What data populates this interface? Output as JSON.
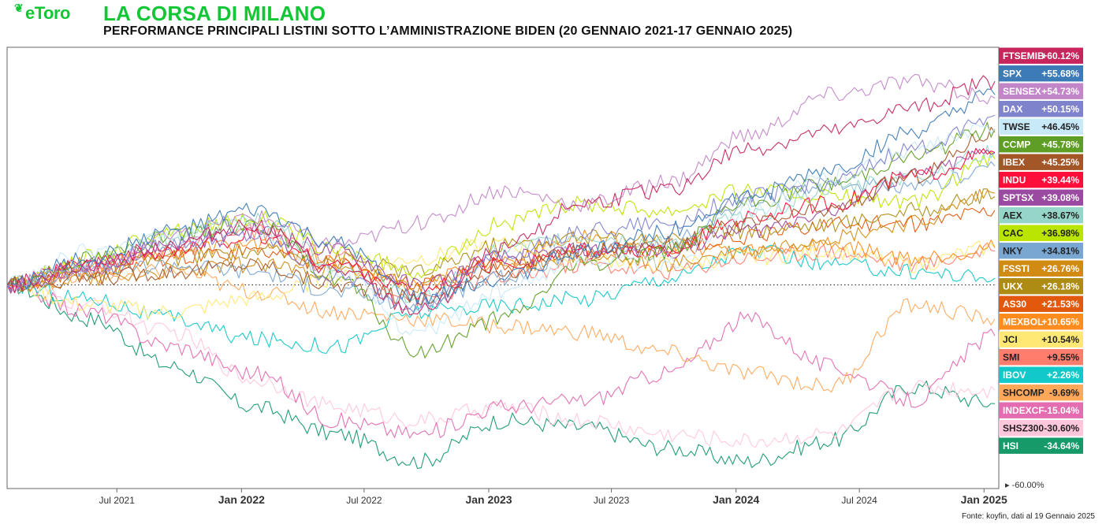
{
  "brand": "eToro",
  "header": {
    "title": "LA CORSA DI MILANO",
    "subtitle": "PERFORMANCE PRINCIPALI LISTINI SOTTO L’AMMINISTRAZIONE BIDEN (20 GENNAIO 2021-17 GENNAIO 2025)"
  },
  "source": "Fonte: koyfin, dati al 19 Gennaio 2025",
  "chart_data": {
    "type": "line",
    "title": "LA CORSA DI MILANO",
    "subtitle": "PERFORMANCE PRINCIPALI LISTINI SOTTO L’AMMINISTRAZIONE BIDEN (20 GENNAIO 2021-17 GENNAIO 2025)",
    "x_start": "2021-01-20",
    "x_end": "2025-01-17",
    "x_ticks": [
      {
        "label": "Jul 2021",
        "date": "2021-07-01",
        "year": false
      },
      {
        "label": "Jan 2022",
        "date": "2022-01-01",
        "year": true
      },
      {
        "label": "Jul 2022",
        "date": "2022-07-01",
        "year": false
      },
      {
        "label": "Jan 2023",
        "date": "2023-01-01",
        "year": true
      },
      {
        "label": "Jul 2023",
        "date": "2023-07-01",
        "year": false
      },
      {
        "label": "Jan 2024",
        "date": "2024-01-01",
        "year": true
      },
      {
        "label": "Jul 2024",
        "date": "2024-07-01",
        "year": false
      },
      {
        "label": "Jan 2025",
        "date": "2025-01-01",
        "year": true
      }
    ],
    "y_axis_label": "-60.00%",
    "ylim": [
      -60,
      70
    ],
    "baseline": 0,
    "legend": "right",
    "series": [
      {
        "name": "FTSEMIB",
        "value_label": "+60.12%",
        "color": "#c6265c",
        "text": "#ffffff",
        "points": [
          0,
          6,
          12,
          18,
          4,
          -8,
          10,
          24,
          28,
          40,
          45,
          52,
          60
        ]
      },
      {
        "name": "SPX",
        "value_label": "+55.68%",
        "color": "#3c7bb6",
        "text": "#ffffff",
        "points": [
          0,
          8,
          16,
          22,
          12,
          -4,
          2,
          10,
          16,
          26,
          34,
          45,
          56
        ]
      },
      {
        "name": "SENSEX",
        "value_label": "+54.73%",
        "color": "#c286c8",
        "text": "#ffffff",
        "points": [
          0,
          5,
          14,
          20,
          12,
          18,
          28,
          24,
          30,
          44,
          56,
          60,
          55
        ]
      },
      {
        "name": "DAX",
        "value_label": "+50.15%",
        "color": "#7f83cc",
        "text": "#ffffff",
        "points": [
          0,
          6,
          12,
          14,
          2,
          -6,
          8,
          16,
          18,
          26,
          30,
          40,
          50
        ]
      },
      {
        "name": "TWSE",
        "value_label": "+46.45%",
        "color": "#c8e9f8",
        "text": "#222222",
        "points": [
          0,
          10,
          14,
          16,
          4,
          -14,
          -2,
          8,
          6,
          22,
          32,
          40,
          46
        ]
      },
      {
        "name": "CCMP",
        "value_label": "+45.78%",
        "color": "#5e9e24",
        "text": "#ffffff",
        "points": [
          0,
          8,
          14,
          18,
          2,
          -20,
          -10,
          6,
          10,
          24,
          30,
          38,
          46
        ]
      },
      {
        "name": "IBEX",
        "value_label": "+45.25%",
        "color": "#a35628",
        "text": "#ffffff",
        "points": [
          0,
          2,
          4,
          6,
          0,
          -4,
          4,
          10,
          12,
          18,
          22,
          32,
          45
        ]
      },
      {
        "name": "INDU",
        "value_label": "+39.44%",
        "color": "#ff0e3a",
        "text": "#ffffff",
        "points": [
          0,
          6,
          10,
          14,
          6,
          -2,
          6,
          10,
          10,
          20,
          24,
          32,
          39
        ]
      },
      {
        "name": "SPTSX",
        "value_label": "+39.08%",
        "color": "#9b4aa2",
        "text": "#ffffff",
        "points": [
          0,
          6,
          12,
          16,
          10,
          0,
          8,
          10,
          10,
          16,
          22,
          32,
          39
        ]
      },
      {
        "name": "AEX",
        "value_label": "+38.67%",
        "color": "#95d6c8",
        "text": "#222222",
        "points": [
          0,
          6,
          14,
          20,
          6,
          -4,
          10,
          14,
          12,
          20,
          28,
          32,
          39
        ]
      },
      {
        "name": "CAC",
        "value_label": "+36.98%",
        "color": "#bae500",
        "text": "#222222",
        "points": [
          0,
          8,
          16,
          20,
          10,
          4,
          18,
          24,
          22,
          28,
          26,
          24,
          37
        ]
      },
      {
        "name": "NKY",
        "value_label": "+34.81%",
        "color": "#7aa6d2",
        "text": "#222222",
        "points": [
          0,
          4,
          6,
          4,
          -2,
          -6,
          2,
          10,
          12,
          24,
          30,
          28,
          35
        ]
      },
      {
        "name": "FSSTI",
        "value_label": "+26.76%",
        "color": "#d28b12",
        "text": "#ffffff",
        "points": [
          0,
          2,
          4,
          6,
          4,
          0,
          6,
          8,
          6,
          10,
          14,
          18,
          27
        ]
      },
      {
        "name": "UKX",
        "value_label": "+26.18%",
        "color": "#ae8c14",
        "text": "#ffffff",
        "points": [
          0,
          4,
          8,
          10,
          8,
          4,
          12,
          14,
          14,
          16,
          18,
          22,
          26
        ]
      },
      {
        "name": "AS30",
        "value_label": "+21.53%",
        "color": "#e2580c",
        "text": "#ffffff",
        "points": [
          0,
          4,
          8,
          10,
          6,
          0,
          6,
          10,
          10,
          14,
          18,
          18,
          22
        ]
      },
      {
        "name": "MEXBOL",
        "value_label": "+10.65%",
        "color": "#ff8c1c",
        "text": "#ffffff",
        "points": [
          0,
          6,
          10,
          12,
          6,
          0,
          8,
          14,
          12,
          10,
          12,
          8,
          11
        ]
      },
      {
        "name": "JCI",
        "value_label": "+10.54%",
        "color": "#ffe873",
        "text": "#222222",
        "points": [
          0,
          -6,
          -8,
          -4,
          2,
          8,
          12,
          8,
          6,
          8,
          10,
          6,
          11
        ]
      },
      {
        "name": "SMI",
        "value_label": "+9.55%",
        "color": "#ff7d6c",
        "text": "#222222",
        "points": [
          0,
          4,
          10,
          16,
          8,
          -4,
          2,
          6,
          4,
          8,
          10,
          6,
          10
        ]
      },
      {
        "name": "IBOV",
        "value_label": "+2.26%",
        "color": "#12c8c8",
        "text": "#ffffff",
        "points": [
          0,
          -4,
          -10,
          -16,
          -18,
          -8,
          -6,
          -4,
          2,
          10,
          6,
          4,
          2
        ]
      },
      {
        "name": "SHCOMP",
        "value_label": "-9.69%",
        "color": "#ffa85a",
        "text": "#222222",
        "points": [
          0,
          2,
          4,
          -2,
          -8,
          -10,
          -12,
          -14,
          -20,
          -26,
          -30,
          -6,
          -10
        ]
      },
      {
        "name": "INDEXCF",
        "value_label": "-15.04%",
        "color": "#e46cb0",
        "text": "#ffffff",
        "points": [
          0,
          -8,
          -18,
          -26,
          -40,
          -44,
          -36,
          -34,
          -26,
          -10,
          -24,
          -34,
          -15
        ]
      },
      {
        "name": "SHSZ300",
        "value_label": "-30.60%",
        "color": "#ffc6dc",
        "text": "#222222",
        "points": [
          0,
          -6,
          -14,
          -28,
          -36,
          -40,
          -36,
          -40,
          -44,
          -46,
          -44,
          -30,
          -31
        ]
      },
      {
        "name": "HSI",
        "value_label": "-34.64%",
        "color": "#169a6a",
        "text": "#ffffff",
        "points": [
          0,
          -10,
          -24,
          -36,
          -44,
          -52,
          -40,
          -42,
          -48,
          -52,
          -46,
          -30,
          -35
        ]
      }
    ]
  }
}
